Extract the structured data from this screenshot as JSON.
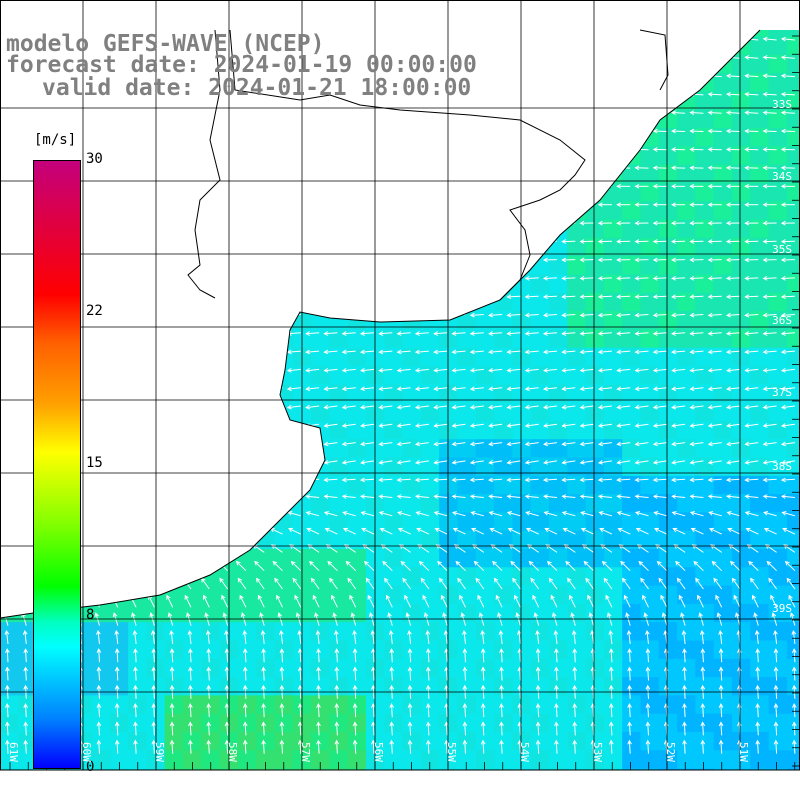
{
  "titles": {
    "model": "modelo GEFS-WAVE (NCEP)",
    "forecast": "forecast date: 2024-01-19 00:00:00",
    "valid": "valid date: 2024-01-21 18:00:00"
  },
  "colorbar": {
    "unit": "[m/s]",
    "ticks": [
      "30",
      "22",
      "15",
      "8",
      "0"
    ],
    "tick_values": [
      30,
      22,
      15,
      8,
      0
    ],
    "min": 0,
    "max": 30,
    "colors": [
      "#0000ff",
      "#0080ff",
      "#00ffff",
      "#00ffc0",
      "#00ff00",
      "#80ff00",
      "#ffff00",
      "#ffa000",
      "#ff6000",
      "#ff0000",
      "#c4007c"
    ]
  },
  "grid": {
    "lat_labels": [
      "33S",
      "34S",
      "35S",
      "36S",
      "37S",
      "38S",
      "39S"
    ],
    "lon_labels": [
      "61W",
      "60W",
      "59W",
      "58W",
      "57W",
      "56W",
      "55W",
      "54W",
      "53W",
      "52W",
      "51W"
    ]
  },
  "colors": {
    "land": "#ffffff",
    "coast": "#000000",
    "grid": "#000000",
    "arrows": "#ffffff",
    "label_gray": "#808080"
  }
}
